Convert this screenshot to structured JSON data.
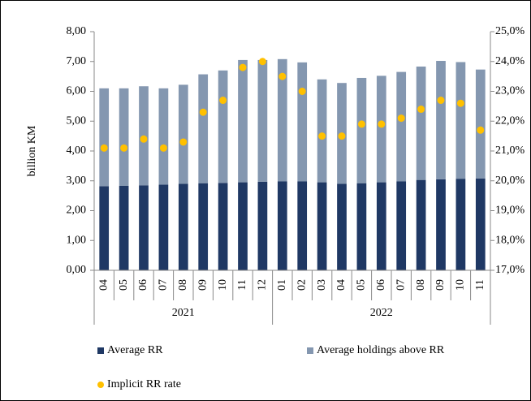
{
  "chart_data": {
    "type": "bar",
    "y_label": "billion KM",
    "groups": [
      {
        "label": "2021",
        "categories": [
          "04",
          "05",
          "06",
          "07",
          "08",
          "09",
          "10",
          "11",
          "12"
        ]
      },
      {
        "label": "2022",
        "categories": [
          "01",
          "02",
          "03",
          "04",
          "05",
          "06",
          "07",
          "08",
          "09",
          "10",
          "11"
        ]
      }
    ],
    "series": [
      {
        "name": "Average RR",
        "color": "#1f3864",
        "stacked": true,
        "values": [
          2.82,
          2.83,
          2.85,
          2.87,
          2.9,
          2.92,
          2.93,
          2.95,
          2.97,
          2.98,
          2.98,
          2.95,
          2.9,
          2.92,
          2.95,
          2.98,
          3.03,
          3.05,
          3.07,
          3.08
        ]
      },
      {
        "name": "Average holdings above RR",
        "color": "#8497b0",
        "stacked": true,
        "values": [
          3.28,
          3.27,
          3.32,
          3.23,
          3.32,
          3.65,
          3.77,
          4.1,
          4.08,
          4.1,
          3.99,
          3.45,
          3.38,
          3.53,
          3.57,
          3.67,
          3.8,
          3.97,
          3.91,
          3.65
        ]
      },
      {
        "name": "Implicit RR rate",
        "color": "#ffc000",
        "type": "scatter",
        "axis": "y2",
        "values": [
          21.1,
          21.1,
          21.4,
          21.1,
          21.3,
          22.3,
          22.7,
          23.8,
          24.0,
          23.5,
          23.0,
          21.5,
          21.5,
          21.9,
          21.9,
          22.1,
          22.4,
          22.7,
          22.6,
          21.7
        ]
      }
    ],
    "ylim": [
      0,
      8
    ],
    "yticks": [
      {
        "value": 0,
        "label": "0,00"
      },
      {
        "value": 1,
        "label": "1,00"
      },
      {
        "value": 2,
        "label": "2,00"
      },
      {
        "value": 3,
        "label": "3,00"
      },
      {
        "value": 4,
        "label": "4,00"
      },
      {
        "value": 5,
        "label": "5,00"
      },
      {
        "value": 6,
        "label": "6,00"
      },
      {
        "value": 7,
        "label": "7,00"
      },
      {
        "value": 8,
        "label": "8,00"
      }
    ],
    "y2lim": [
      17,
      25
    ],
    "y2ticks": [
      {
        "value": 17,
        "label": "17,0%"
      },
      {
        "value": 18,
        "label": "18,0%"
      },
      {
        "value": 19,
        "label": "19,0%"
      },
      {
        "value": 20,
        "label": "20,0%"
      },
      {
        "value": 21,
        "label": "21,0%"
      },
      {
        "value": 22,
        "label": "22,0%"
      },
      {
        "value": 23,
        "label": "23,0%"
      },
      {
        "value": 24,
        "label": "24,0%"
      },
      {
        "value": 25,
        "label": "25,0%"
      }
    ],
    "legend": "bottom"
  }
}
